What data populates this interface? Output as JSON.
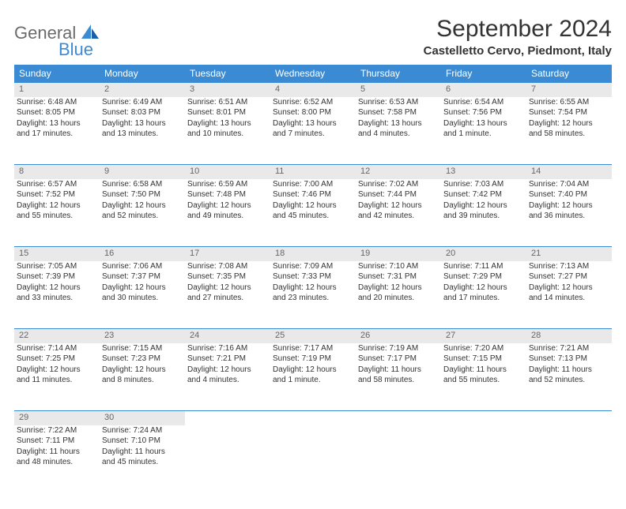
{
  "logo": {
    "general": "General",
    "blue": "Blue"
  },
  "title": "September 2024",
  "location": "Castelletto Cervo, Piedmont, Italy",
  "colors": {
    "accent": "#3b8bd4",
    "headerText": "#ffffff",
    "dayBg": "#e9e9e9",
    "text": "#333333"
  },
  "weekdays": [
    "Sunday",
    "Monday",
    "Tuesday",
    "Wednesday",
    "Thursday",
    "Friday",
    "Saturday"
  ],
  "weeks": [
    [
      {
        "n": "1",
        "sr": "Sunrise: 6:48 AM",
        "ss": "Sunset: 8:05 PM",
        "d1": "Daylight: 13 hours",
        "d2": "and 17 minutes."
      },
      {
        "n": "2",
        "sr": "Sunrise: 6:49 AM",
        "ss": "Sunset: 8:03 PM",
        "d1": "Daylight: 13 hours",
        "d2": "and 13 minutes."
      },
      {
        "n": "3",
        "sr": "Sunrise: 6:51 AM",
        "ss": "Sunset: 8:01 PM",
        "d1": "Daylight: 13 hours",
        "d2": "and 10 minutes."
      },
      {
        "n": "4",
        "sr": "Sunrise: 6:52 AM",
        "ss": "Sunset: 8:00 PM",
        "d1": "Daylight: 13 hours",
        "d2": "and 7 minutes."
      },
      {
        "n": "5",
        "sr": "Sunrise: 6:53 AM",
        "ss": "Sunset: 7:58 PM",
        "d1": "Daylight: 13 hours",
        "d2": "and 4 minutes."
      },
      {
        "n": "6",
        "sr": "Sunrise: 6:54 AM",
        "ss": "Sunset: 7:56 PM",
        "d1": "Daylight: 13 hours",
        "d2": "and 1 minute."
      },
      {
        "n": "7",
        "sr": "Sunrise: 6:55 AM",
        "ss": "Sunset: 7:54 PM",
        "d1": "Daylight: 12 hours",
        "d2": "and 58 minutes."
      }
    ],
    [
      {
        "n": "8",
        "sr": "Sunrise: 6:57 AM",
        "ss": "Sunset: 7:52 PM",
        "d1": "Daylight: 12 hours",
        "d2": "and 55 minutes."
      },
      {
        "n": "9",
        "sr": "Sunrise: 6:58 AM",
        "ss": "Sunset: 7:50 PM",
        "d1": "Daylight: 12 hours",
        "d2": "and 52 minutes."
      },
      {
        "n": "10",
        "sr": "Sunrise: 6:59 AM",
        "ss": "Sunset: 7:48 PM",
        "d1": "Daylight: 12 hours",
        "d2": "and 49 minutes."
      },
      {
        "n": "11",
        "sr": "Sunrise: 7:00 AM",
        "ss": "Sunset: 7:46 PM",
        "d1": "Daylight: 12 hours",
        "d2": "and 45 minutes."
      },
      {
        "n": "12",
        "sr": "Sunrise: 7:02 AM",
        "ss": "Sunset: 7:44 PM",
        "d1": "Daylight: 12 hours",
        "d2": "and 42 minutes."
      },
      {
        "n": "13",
        "sr": "Sunrise: 7:03 AM",
        "ss": "Sunset: 7:42 PM",
        "d1": "Daylight: 12 hours",
        "d2": "and 39 minutes."
      },
      {
        "n": "14",
        "sr": "Sunrise: 7:04 AM",
        "ss": "Sunset: 7:40 PM",
        "d1": "Daylight: 12 hours",
        "d2": "and 36 minutes."
      }
    ],
    [
      {
        "n": "15",
        "sr": "Sunrise: 7:05 AM",
        "ss": "Sunset: 7:39 PM",
        "d1": "Daylight: 12 hours",
        "d2": "and 33 minutes."
      },
      {
        "n": "16",
        "sr": "Sunrise: 7:06 AM",
        "ss": "Sunset: 7:37 PM",
        "d1": "Daylight: 12 hours",
        "d2": "and 30 minutes."
      },
      {
        "n": "17",
        "sr": "Sunrise: 7:08 AM",
        "ss": "Sunset: 7:35 PM",
        "d1": "Daylight: 12 hours",
        "d2": "and 27 minutes."
      },
      {
        "n": "18",
        "sr": "Sunrise: 7:09 AM",
        "ss": "Sunset: 7:33 PM",
        "d1": "Daylight: 12 hours",
        "d2": "and 23 minutes."
      },
      {
        "n": "19",
        "sr": "Sunrise: 7:10 AM",
        "ss": "Sunset: 7:31 PM",
        "d1": "Daylight: 12 hours",
        "d2": "and 20 minutes."
      },
      {
        "n": "20",
        "sr": "Sunrise: 7:11 AM",
        "ss": "Sunset: 7:29 PM",
        "d1": "Daylight: 12 hours",
        "d2": "and 17 minutes."
      },
      {
        "n": "21",
        "sr": "Sunrise: 7:13 AM",
        "ss": "Sunset: 7:27 PM",
        "d1": "Daylight: 12 hours",
        "d2": "and 14 minutes."
      }
    ],
    [
      {
        "n": "22",
        "sr": "Sunrise: 7:14 AM",
        "ss": "Sunset: 7:25 PM",
        "d1": "Daylight: 12 hours",
        "d2": "and 11 minutes."
      },
      {
        "n": "23",
        "sr": "Sunrise: 7:15 AM",
        "ss": "Sunset: 7:23 PM",
        "d1": "Daylight: 12 hours",
        "d2": "and 8 minutes."
      },
      {
        "n": "24",
        "sr": "Sunrise: 7:16 AM",
        "ss": "Sunset: 7:21 PM",
        "d1": "Daylight: 12 hours",
        "d2": "and 4 minutes."
      },
      {
        "n": "25",
        "sr": "Sunrise: 7:17 AM",
        "ss": "Sunset: 7:19 PM",
        "d1": "Daylight: 12 hours",
        "d2": "and 1 minute."
      },
      {
        "n": "26",
        "sr": "Sunrise: 7:19 AM",
        "ss": "Sunset: 7:17 PM",
        "d1": "Daylight: 11 hours",
        "d2": "and 58 minutes."
      },
      {
        "n": "27",
        "sr": "Sunrise: 7:20 AM",
        "ss": "Sunset: 7:15 PM",
        "d1": "Daylight: 11 hours",
        "d2": "and 55 minutes."
      },
      {
        "n": "28",
        "sr": "Sunrise: 7:21 AM",
        "ss": "Sunset: 7:13 PM",
        "d1": "Daylight: 11 hours",
        "d2": "and 52 minutes."
      }
    ],
    [
      {
        "n": "29",
        "sr": "Sunrise: 7:22 AM",
        "ss": "Sunset: 7:11 PM",
        "d1": "Daylight: 11 hours",
        "d2": "and 48 minutes."
      },
      {
        "n": "30",
        "sr": "Sunrise: 7:24 AM",
        "ss": "Sunset: 7:10 PM",
        "d1": "Daylight: 11 hours",
        "d2": "and 45 minutes."
      },
      null,
      null,
      null,
      null,
      null
    ]
  ]
}
